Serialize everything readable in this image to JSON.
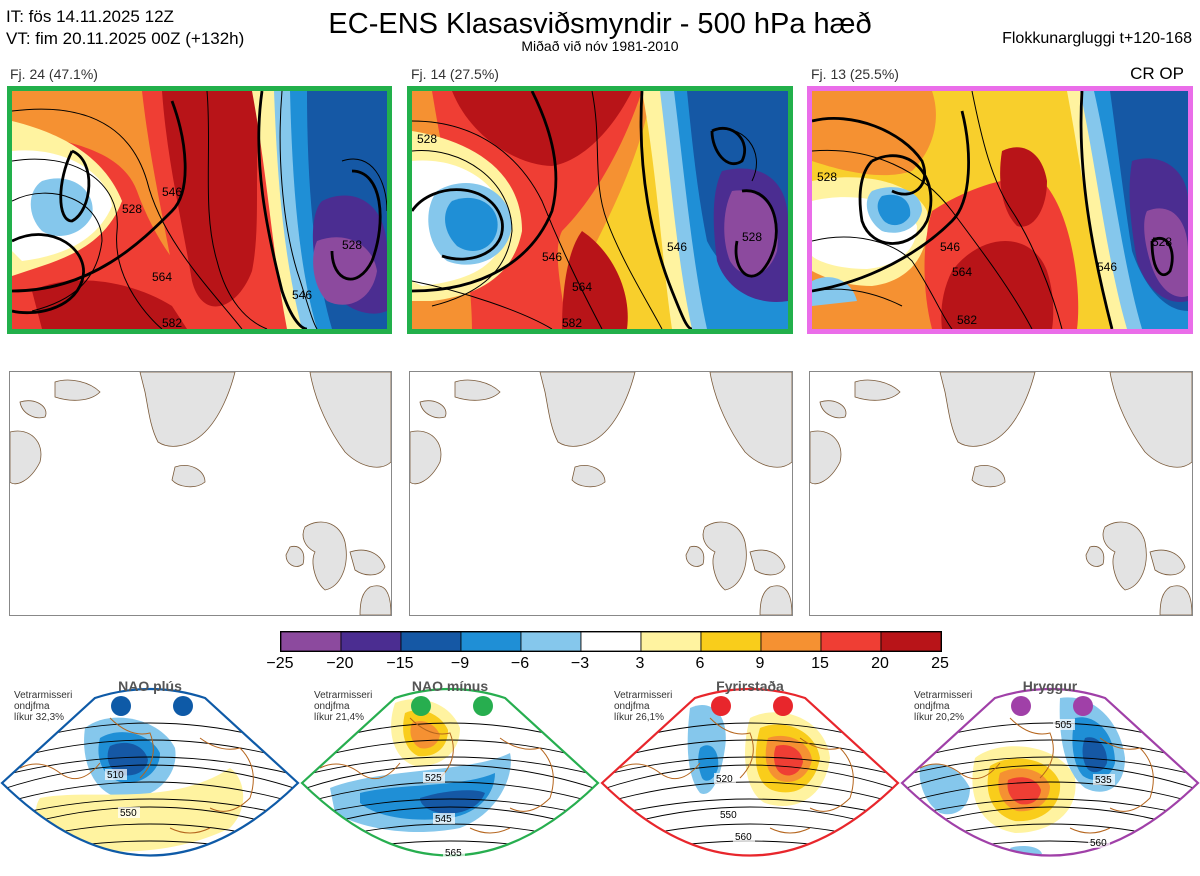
{
  "header": {
    "it_line": "IT: fös 14.11.2025 12Z",
    "vt_line": "VT: fim 20.11.2025 00Z  (+132h)",
    "title": "EC-ENS Klasasviðsmyndir - 500 hPa hæð",
    "subtitle": "Miðað við nóv 1981-2010",
    "window": "Flokkunargluggi t+120-168"
  },
  "panels": [
    {
      "label": "Fj. 24 (47.1%)",
      "border_color": "#22b04b",
      "contour_labels": [
        "528",
        "546",
        "564",
        "582",
        "528",
        "546"
      ]
    },
    {
      "label": "Fj. 14 (27.5%)",
      "border_color": "#22b04b",
      "contour_labels": [
        "528",
        "546",
        "564",
        "582",
        "546",
        "528"
      ]
    },
    {
      "label": "Fj. 13 (25.5%)",
      "border_color": "#ea6de9",
      "contour_labels": [
        "528",
        "546",
        "564",
        "582",
        "528",
        "546"
      ],
      "tag": "CR OP"
    }
  ],
  "colorbar": {
    "ticks": [
      "−25",
      "−20",
      "−15",
      "−9",
      "−6",
      "−3",
      "3",
      "6",
      "9",
      "15",
      "20",
      "25"
    ],
    "colors": [
      "#8c4a9e",
      "#4b2d91",
      "#1558a5",
      "#1f8fd6",
      "#85c7ec",
      "#ffffff",
      "#fff3a0",
      "#f9cd1b",
      "#f59132",
      "#ef3e34",
      "#b81418"
    ]
  },
  "regimes": [
    {
      "title": "NAO plús",
      "note": [
        "Vetrarmisseri",
        "ondjfma",
        "líkur 32,3%"
      ],
      "color": "#0e5aa7",
      "contour_labels": [
        "510",
        "550"
      ]
    },
    {
      "title": "NAO mínus",
      "note": [
        "Vetrarmisseri",
        "ondjfma",
        "líkur 21,4%"
      ],
      "color": "#27ae4f",
      "contour_labels": [
        "525",
        "545",
        "565"
      ]
    },
    {
      "title": "Fyrirstaða",
      "note": [
        "Vetrarmisseri",
        "ondjfma",
        "líkur 26,1%"
      ],
      "color": "#e8262c",
      "contour_labels": [
        "520",
        "550",
        "560"
      ]
    },
    {
      "title": "Hryggur",
      "note": [
        "Vetrarmisseri",
        "ondjfma",
        "líkur 20,2%"
      ],
      "color": "#a040a8",
      "contour_labels": [
        "505",
        "535",
        "560"
      ]
    }
  ]
}
